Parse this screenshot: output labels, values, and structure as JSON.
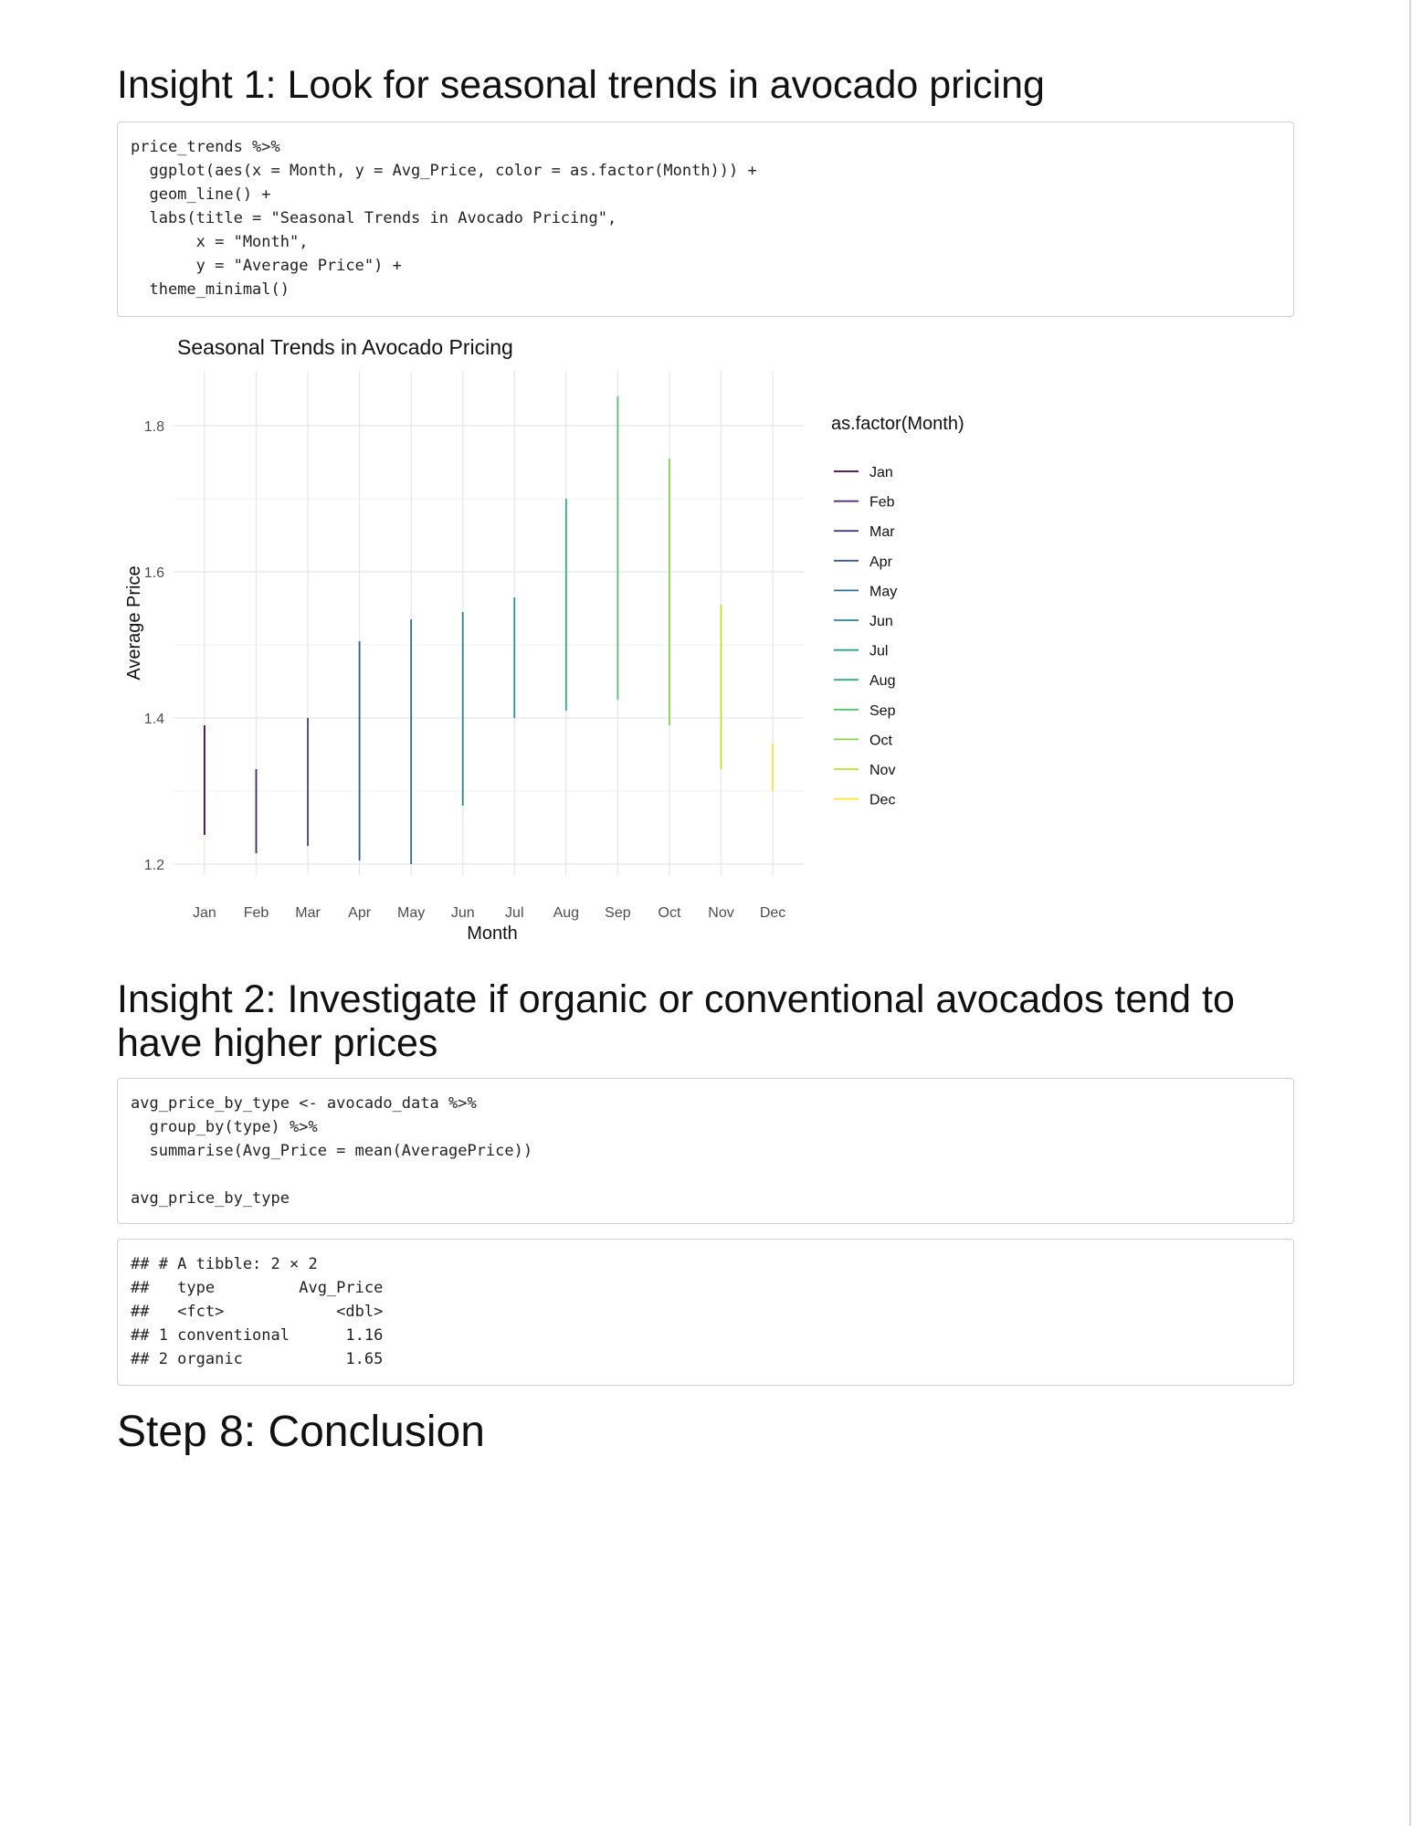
{
  "sections": {
    "insight1_title": "Insight 1: Look for seasonal trends in avocado pricing",
    "insight2_title": "Insight 2: Investigate if organic or conventional avocados tend to have higher prices",
    "step8_title": "Step 8: Conclusion"
  },
  "code_blocks": {
    "plot_code": "price_trends %>%\n  ggplot(aes(x = Month, y = Avg_Price, color = as.factor(Month))) +\n  geom_line() +\n  labs(title = \"Seasonal Trends in Avocado Pricing\",\n       x = \"Month\",\n       y = \"Average Price\") +\n  theme_minimal()",
    "type_code": "avg_price_by_type <- avocado_data %>%\n  group_by(type) %>%\n  summarise(Avg_Price = mean(AveragePrice))\n\navg_price_by_type",
    "type_output": "## # A tibble: 2 × 2\n##   type         Avg_Price\n##   <fct>            <dbl>\n## 1 conventional      1.16\n## 2 organic           1.65"
  },
  "chart_data": {
    "type": "line",
    "title": "Seasonal Trends in Avocado Pricing",
    "xlabel": "Month",
    "ylabel": "Average Price",
    "categories": [
      "Jan",
      "Feb",
      "Mar",
      "Apr",
      "May",
      "Jun",
      "Jul",
      "Aug",
      "Sep",
      "Oct",
      "Nov",
      "Dec"
    ],
    "yticks": [
      "1.2",
      "1.4",
      "1.6",
      "1.8"
    ],
    "ylim": [
      1.185,
      1.875
    ],
    "legend_title": "as.factor(Month)",
    "legend_position": "right",
    "grid": true,
    "series": [
      {
        "name": "Jan",
        "min": 1.24,
        "max": 1.39,
        "color": "#440154"
      },
      {
        "name": "Feb",
        "min": 1.215,
        "max": 1.33,
        "color": "#482173"
      },
      {
        "name": "Mar",
        "min": 1.225,
        "max": 1.4,
        "color": "#433E85"
      },
      {
        "name": "Apr",
        "min": 1.205,
        "max": 1.505,
        "color": "#38598C"
      },
      {
        "name": "May",
        "min": 1.2,
        "max": 1.535,
        "color": "#2D708E"
      },
      {
        "name": "Jun",
        "min": 1.28,
        "max": 1.545,
        "color": "#25858E"
      },
      {
        "name": "Jul",
        "min": 1.4,
        "max": 1.565,
        "color": "#1E9B8A"
      },
      {
        "name": "Aug",
        "min": 1.41,
        "max": 1.7,
        "color": "#2BB07F"
      },
      {
        "name": "Sep",
        "min": 1.425,
        "max": 1.84,
        "color": "#51C56A"
      },
      {
        "name": "Oct",
        "min": 1.39,
        "max": 1.755,
        "color": "#85D54A"
      },
      {
        "name": "Nov",
        "min": 1.33,
        "max": 1.555,
        "color": "#C2DF23"
      },
      {
        "name": "Dec",
        "min": 1.3,
        "max": 1.365,
        "color": "#FDE725"
      }
    ]
  }
}
